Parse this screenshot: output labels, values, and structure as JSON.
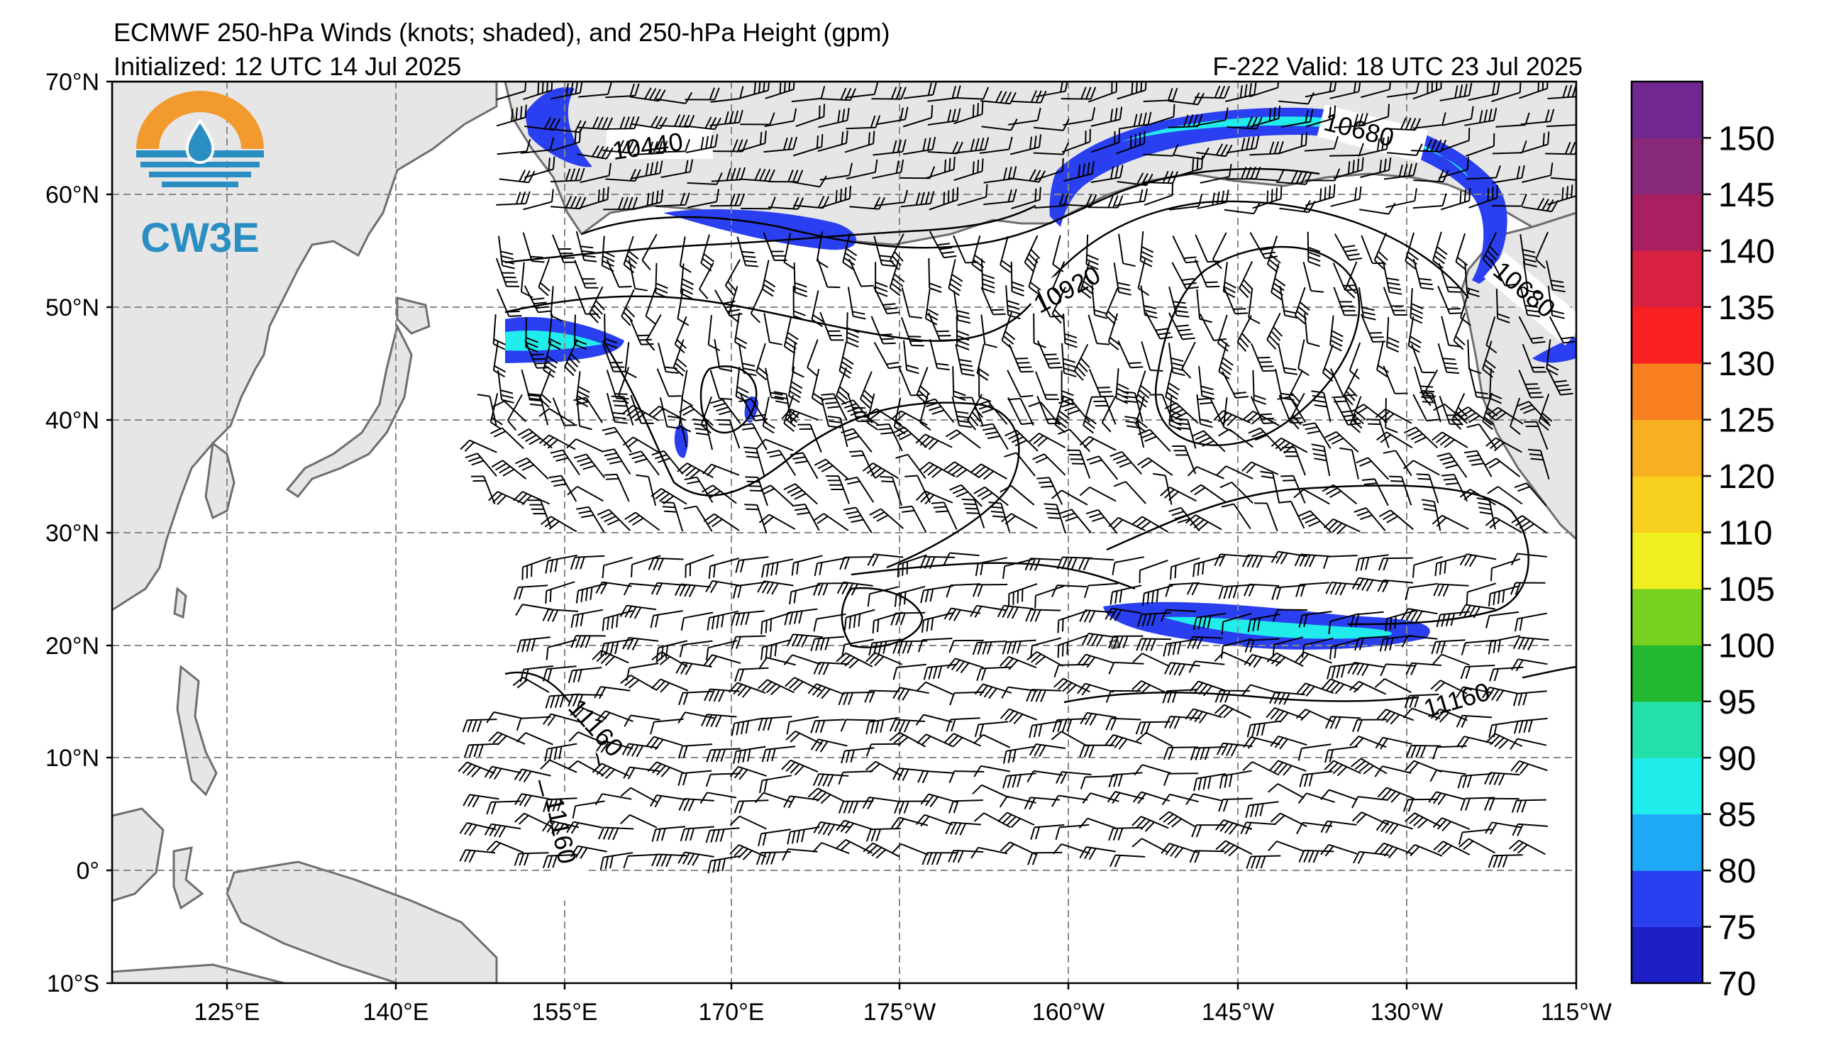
{
  "header": {
    "title": "ECMWF 250-hPa Winds (knots; shaded), and 250-hPa Height (gpm)",
    "initialized": "Initialized: 12 UTC 14 Jul 2025",
    "valid": "F-222  Valid: 18 UTC 23 Jul 2025"
  },
  "logo": {
    "text": "CW3E"
  },
  "map": {
    "lat_labels": [
      "70°N",
      "60°N",
      "50°N",
      "40°N",
      "30°N",
      "20°N",
      "10°N",
      "0°",
      "10°S"
    ],
    "lon_labels": [
      "125°E",
      "140°E",
      "155°E",
      "170°E",
      "175°W",
      "160°W",
      "145°W",
      "130°W",
      "115°W"
    ],
    "contour_labels": [
      "10440",
      "10680",
      "10920",
      "10680",
      "11160",
      "11160",
      "11160"
    ]
  },
  "colorbar": {
    "ticks": [
      "70",
      "75",
      "80",
      "85",
      "90",
      "95",
      "100",
      "105",
      "110",
      "120",
      "125",
      "130",
      "135",
      "140",
      "145",
      "150"
    ],
    "colors": [
      "#1f1fc8",
      "#2a3ff0",
      "#1fa8f5",
      "#20ecec",
      "#22e0a8",
      "#22b830",
      "#78d020",
      "#f0f020",
      "#f8d020",
      "#f8b020",
      "#f88020",
      "#f82020",
      "#d82040",
      "#a82060",
      "#882878",
      "#702890"
    ]
  },
  "colors": {
    "land": "#e6e6e6",
    "coast": "#6e6e6e",
    "grid": "#888888",
    "logo_orange": "#f29a2e",
    "logo_blue": "#2b8ec2"
  }
}
